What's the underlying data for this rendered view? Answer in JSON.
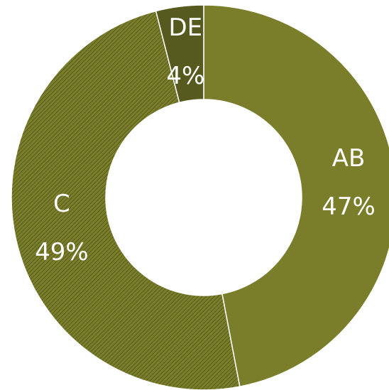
{
  "chart_data": {
    "type": "donut",
    "categories": [
      "AB",
      "C",
      "DE"
    ],
    "values": [
      47,
      49,
      4
    ],
    "value_labels": [
      "47%",
      "49%",
      "4%"
    ],
    "colors": [
      "#7a7e2a",
      "#6b6f24",
      "#565a1e"
    ],
    "hatched": [
      false,
      true,
      false
    ]
  }
}
